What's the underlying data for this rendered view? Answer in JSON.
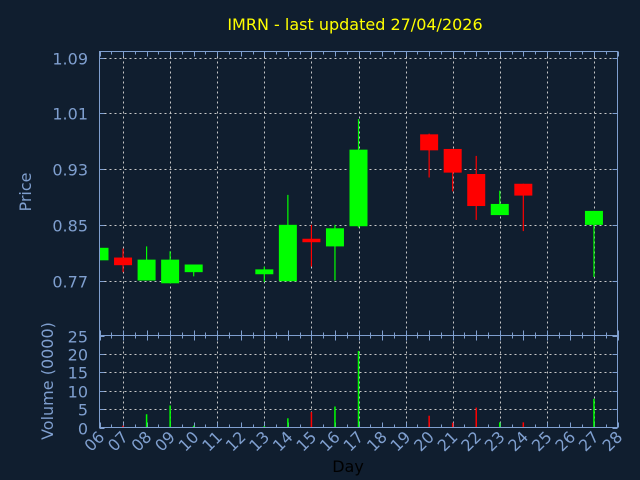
{
  "chart_data": {
    "type": "candlestick",
    "title": "IMRN - last updated 27/04/2026",
    "xlabel": "Day",
    "x_ticks": [
      "06",
      "07",
      "08",
      "09",
      "10",
      "11",
      "12",
      "13",
      "14",
      "15",
      "16",
      "17",
      "18",
      "19",
      "20",
      "21",
      "22",
      "23",
      "24",
      "25",
      "26",
      "27",
      "28"
    ],
    "xlim": [
      6,
      28
    ],
    "grid": true,
    "colors": {
      "background": "#101e2f",
      "axis": "#7f9fcf",
      "title": "#ffff00",
      "up": "#00ff00",
      "down": "#ff0000",
      "grid": "#c8c8c8",
      "xlabel": "#000000"
    },
    "price_panel": {
      "ylabel": "Price",
      "y_ticks": [
        "0.77",
        "0.85",
        "0.93",
        "1.01",
        "1.09"
      ],
      "ylim": [
        0.691,
        1.099
      ],
      "candles": [
        {
          "day": 6,
          "open": 0.799,
          "high": 0.817,
          "low": 0.799,
          "close": 0.817
        },
        {
          "day": 7,
          "open": 0.803,
          "high": 0.816,
          "low": 0.782,
          "close": 0.792
        },
        {
          "day": 8,
          "open": 0.77,
          "high": 0.819,
          "low": 0.77,
          "close": 0.8
        },
        {
          "day": 9,
          "open": 0.766,
          "high": 0.812,
          "low": 0.766,
          "close": 0.8
        },
        {
          "day": 10,
          "open": 0.782,
          "high": 0.793,
          "low": 0.776,
          "close": 0.793
        },
        {
          "day": 13,
          "open": 0.779,
          "high": 0.79,
          "low": 0.768,
          "close": 0.786
        },
        {
          "day": 14,
          "open": 0.769,
          "high": 0.893,
          "low": 0.769,
          "close": 0.85
        },
        {
          "day": 15,
          "open": 0.83,
          "high": 0.85,
          "low": 0.79,
          "close": 0.825
        },
        {
          "day": 16,
          "open": 0.819,
          "high": 0.85,
          "low": 0.77,
          "close": 0.845
        },
        {
          "day": 17,
          "open": 0.848,
          "high": 1.002,
          "low": 0.846,
          "close": 0.958
        },
        {
          "day": 20,
          "open": 0.98,
          "high": 0.981,
          "low": 0.918,
          "close": 0.957
        },
        {
          "day": 21,
          "open": 0.959,
          "high": 0.959,
          "low": 0.898,
          "close": 0.925
        },
        {
          "day": 22,
          "open": 0.923,
          "high": 0.949,
          "low": 0.857,
          "close": 0.877
        },
        {
          "day": 23,
          "open": 0.864,
          "high": 0.899,
          "low": 0.864,
          "close": 0.88
        },
        {
          "day": 24,
          "open": 0.909,
          "high": 0.909,
          "low": 0.841,
          "close": 0.892
        },
        {
          "day": 27,
          "open": 0.85,
          "high": 0.87,
          "low": 0.775,
          "close": 0.87
        }
      ]
    },
    "volume_panel": {
      "ylabel": "Volume (0000)",
      "y_ticks": [
        "0",
        "5",
        "10",
        "15",
        "20",
        "25"
      ],
      "ylim": [
        0,
        25
      ],
      "bars": [
        {
          "day": 7,
          "value": 0.5,
          "direction": "down"
        },
        {
          "day": 8,
          "value": 3.6,
          "direction": "up"
        },
        {
          "day": 9,
          "value": 6.0,
          "direction": "up"
        },
        {
          "day": 10,
          "value": 0.5,
          "direction": "up"
        },
        {
          "day": 13,
          "value": 0.4,
          "direction": "up"
        },
        {
          "day": 14,
          "value": 2.5,
          "direction": "up"
        },
        {
          "day": 15,
          "value": 4.2,
          "direction": "down"
        },
        {
          "day": 16,
          "value": 5.7,
          "direction": "up"
        },
        {
          "day": 17,
          "value": 20.8,
          "direction": "up"
        },
        {
          "day": 20,
          "value": 3.2,
          "direction": "down"
        },
        {
          "day": 21,
          "value": 1.3,
          "direction": "down"
        },
        {
          "day": 22,
          "value": 5.4,
          "direction": "down"
        },
        {
          "day": 23,
          "value": 1.4,
          "direction": "up"
        },
        {
          "day": 24,
          "value": 1.4,
          "direction": "down"
        },
        {
          "day": 27,
          "value": 7.8,
          "direction": "up"
        }
      ]
    }
  }
}
